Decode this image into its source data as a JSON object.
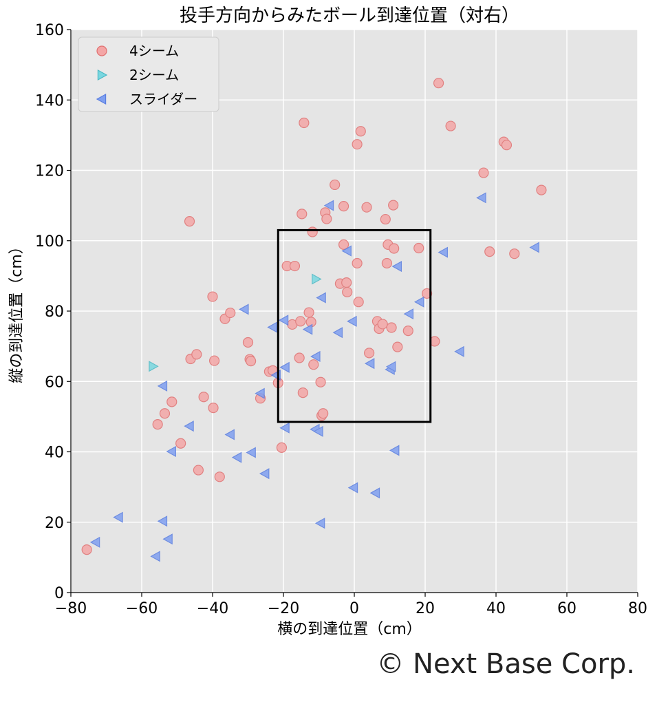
{
  "chart_data": {
    "type": "scatter",
    "title": "投手方向からみたボール到達位置（対右）",
    "xlabel": "横の到達位置（cm）",
    "ylabel": "縦の到達位置（cm）",
    "xlim": [
      -80,
      80
    ],
    "ylim": [
      0,
      160
    ],
    "xticks": [
      -80,
      -60,
      -40,
      -20,
      0,
      20,
      40,
      60,
      80
    ],
    "yticks": [
      0,
      20,
      40,
      60,
      80,
      100,
      120,
      140,
      160
    ],
    "xtick_labels": [
      "−80",
      "−60",
      "−40",
      "−20",
      "0",
      "20",
      "40",
      "60",
      "80"
    ],
    "ytick_labels": [
      "0",
      "20",
      "40",
      "60",
      "80",
      "100",
      "120",
      "140",
      "160"
    ],
    "grid": true,
    "legend_position": "top-left",
    "strike_zone": {
      "x": [
        -21.5,
        21.5
      ],
      "y": [
        48.5,
        103
      ]
    },
    "series": [
      {
        "name": "4シーム",
        "marker": "circle",
        "color": "#f4a6a6",
        "edge": "#e07070",
        "points": [
          [
            -75.5,
            12.2
          ],
          [
            -55.5,
            47.8
          ],
          [
            -53.5,
            50.9
          ],
          [
            -51.5,
            54.2
          ],
          [
            -49,
            42.4
          ],
          [
            -46.5,
            105.5
          ],
          [
            -46.2,
            66.4
          ],
          [
            -44.5,
            67.7
          ],
          [
            -44,
            34.8
          ],
          [
            -42.5,
            55.6
          ],
          [
            -40,
            84.1
          ],
          [
            -39.8,
            52.5
          ],
          [
            -39.5,
            65.9
          ],
          [
            -38,
            32.9
          ],
          [
            -36.5,
            77.8
          ],
          [
            -35,
            79.5
          ],
          [
            -30,
            71.1
          ],
          [
            -29.5,
            66.3
          ],
          [
            -29.2,
            65.8
          ],
          [
            -26.5,
            55.2
          ],
          [
            -24,
            62.8
          ],
          [
            -23,
            63.1
          ],
          [
            -21.5,
            59.6
          ],
          [
            -20.5,
            41.2
          ],
          [
            -19,
            92.8
          ],
          [
            -17.5,
            76.2
          ],
          [
            -16.8,
            92.8
          ],
          [
            -15.5,
            66.7
          ],
          [
            -15.2,
            77.1
          ],
          [
            -14.8,
            107.6
          ],
          [
            -14.5,
            56.8
          ],
          [
            -14.2,
            133.5
          ],
          [
            -12.8,
            79.6
          ],
          [
            -12.2,
            76.9
          ],
          [
            -11.8,
            102.5
          ],
          [
            -11.5,
            64.8
          ],
          [
            -9.5,
            59.8
          ],
          [
            -9.2,
            50.3
          ],
          [
            -8.8,
            50.9
          ],
          [
            -8.2,
            108
          ],
          [
            -7.8,
            106.2
          ],
          [
            -5.5,
            115.9
          ],
          [
            -4,
            87.8
          ],
          [
            -3,
            98.9
          ],
          [
            -3,
            109.8
          ],
          [
            -2.2,
            88.1
          ],
          [
            -2,
            85.4
          ],
          [
            0.8,
            93.6
          ],
          [
            0.8,
            127.4
          ],
          [
            1.2,
            82.6
          ],
          [
            1.8,
            131.1
          ],
          [
            3.5,
            109.5
          ],
          [
            4.2,
            68.1
          ],
          [
            6.5,
            77.1
          ],
          [
            7,
            75
          ],
          [
            8,
            76.3
          ],
          [
            8.8,
            106.1
          ],
          [
            9.2,
            93.6
          ],
          [
            9.5,
            98.9
          ],
          [
            10.5,
            75.3
          ],
          [
            11,
            110.1
          ],
          [
            11.2,
            97.8
          ],
          [
            12.2,
            69.8
          ],
          [
            15.2,
            74.4
          ],
          [
            18.2,
            97.9
          ],
          [
            20.5,
            85
          ],
          [
            22.7,
            71.4
          ],
          [
            23.8,
            144.8
          ],
          [
            27.2,
            132.6
          ],
          [
            36.5,
            119.3
          ],
          [
            38.2,
            96.9
          ],
          [
            42.2,
            128.1
          ],
          [
            43,
            127.2
          ],
          [
            45.2,
            96.3
          ],
          [
            52.8,
            114.4
          ]
        ]
      },
      {
        "name": "2シーム",
        "marker": "triangle-right",
        "color": "#7ad7e0",
        "edge": "#4ab8c4",
        "points": [
          [
            -56.8,
            64.3
          ],
          [
            -10.8,
            89.1
          ]
        ]
      },
      {
        "name": "スライダー",
        "marker": "triangle-left",
        "color": "#7f9ff0",
        "edge": "#5a7ee0",
        "points": [
          [
            -73,
            14.3
          ],
          [
            -66.5,
            21.4
          ],
          [
            -56,
            10.3
          ],
          [
            -54,
            20.3
          ],
          [
            -54,
            58.7
          ],
          [
            -52.5,
            15.2
          ],
          [
            -51.5,
            40.1
          ],
          [
            -46.5,
            47.3
          ],
          [
            -35,
            44.9
          ],
          [
            -33,
            38.4
          ],
          [
            -31,
            80.5
          ],
          [
            -29,
            39.8
          ],
          [
            -26.5,
            56.6
          ],
          [
            -25.2,
            33.8
          ],
          [
            -23,
            75.4
          ],
          [
            -22,
            61.8
          ],
          [
            -19.8,
            77.4
          ],
          [
            -19.5,
            64
          ],
          [
            -19.5,
            46.8
          ],
          [
            -13,
            74.8
          ],
          [
            -11,
            46.4
          ],
          [
            -10.8,
            67.1
          ],
          [
            -10,
            45.8
          ],
          [
            -9.5,
            19.7
          ],
          [
            -9.2,
            83.8
          ],
          [
            -7,
            110
          ],
          [
            -4.5,
            73.9
          ],
          [
            -2,
            97.1
          ],
          [
            -0.5,
            77.1
          ],
          [
            -0.2,
            29.8
          ],
          [
            4.5,
            65.1
          ],
          [
            6,
            28.3
          ],
          [
            10.2,
            63.4
          ],
          [
            10.5,
            64.2
          ],
          [
            11.5,
            40.4
          ],
          [
            12.2,
            92.7
          ],
          [
            15.5,
            79.2
          ],
          [
            18.5,
            82.6
          ],
          [
            25.2,
            96.7
          ],
          [
            29.8,
            68.5
          ],
          [
            36,
            112.2
          ],
          [
            51,
            98.1
          ]
        ]
      }
    ]
  },
  "copyright": "© Next Base Corp."
}
